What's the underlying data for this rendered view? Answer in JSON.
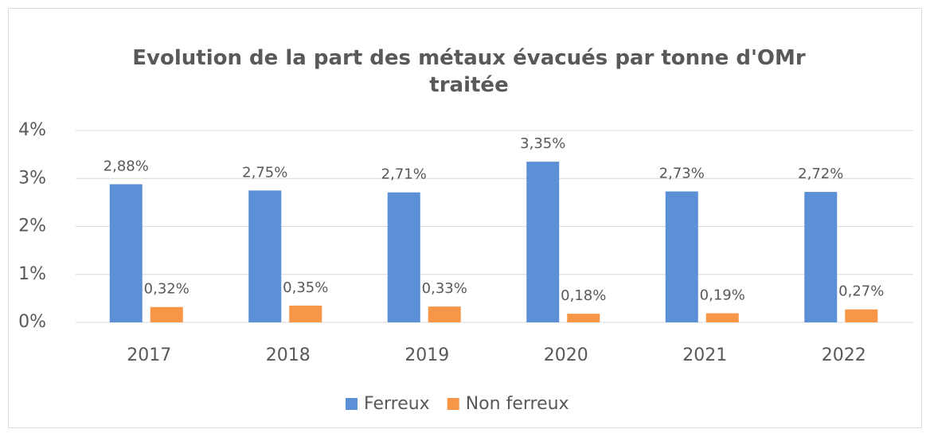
{
  "chart_data": {
    "type": "bar",
    "title": "Evolution de la part des métaux évacués par tonne d'OMr traitée",
    "categories": [
      "2017",
      "2018",
      "2019",
      "2020",
      "2021",
      "2022"
    ],
    "series": [
      {
        "name": "Ferreux",
        "color": "#5b8fd6",
        "values": [
          2.88,
          2.75,
          2.71,
          3.35,
          2.73,
          2.72
        ],
        "value_labels": [
          "2,88%",
          "2,75%",
          "2,71%",
          "3,35%",
          "2,73%",
          "2,72%"
        ]
      },
      {
        "name": "Non ferreux",
        "color": "#f79646",
        "values": [
          0.32,
          0.35,
          0.33,
          0.18,
          0.19,
          0.27
        ],
        "value_labels": [
          "0,32%",
          "0,35%",
          "0,33%",
          "0,18%",
          "0,19%",
          "0,27%"
        ]
      }
    ],
    "ylim": [
      0,
      4
    ],
    "yticks": [
      {
        "value": 0,
        "label": "0%"
      },
      {
        "value": 1,
        "label": "1%"
      },
      {
        "value": 2,
        "label": "2%"
      },
      {
        "value": 3,
        "label": "3%"
      },
      {
        "value": 4,
        "label": "4%"
      }
    ],
    "grid": true,
    "legend": "bottom"
  }
}
